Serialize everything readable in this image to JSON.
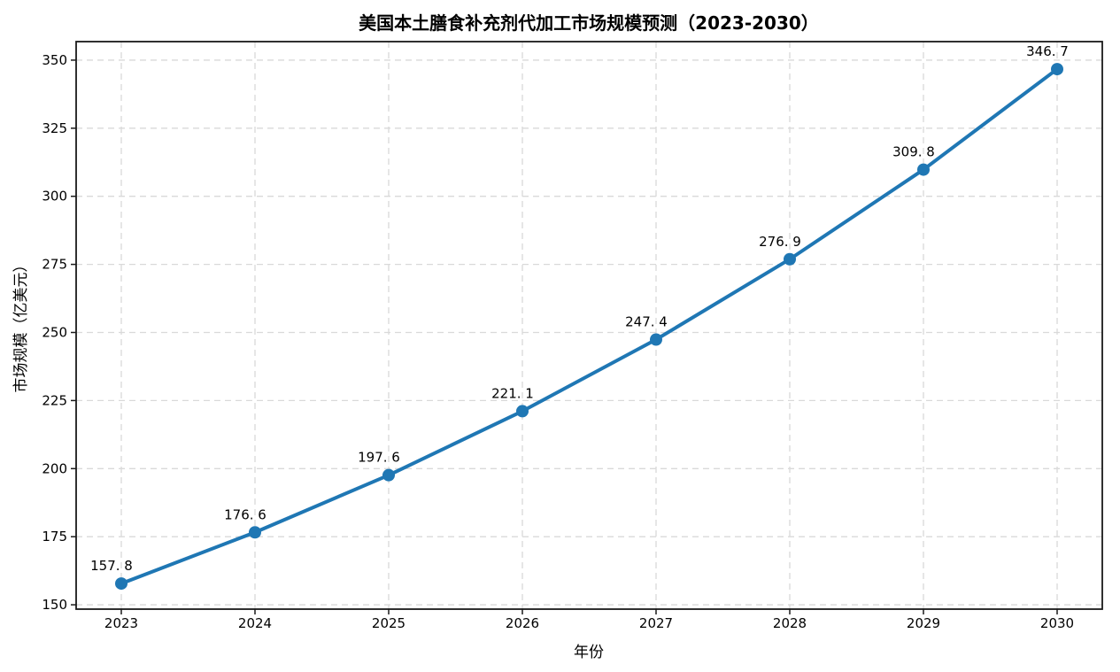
{
  "page": {
    "background": "#ffffff"
  },
  "chart_data": {
    "type": "line",
    "title": "美国本土膳食补充剂代加工市场规模预测（2023-2030）",
    "xlabel": "年份",
    "ylabel": "市场规模（亿美元）",
    "categories": [
      "2023",
      "2024",
      "2025",
      "2026",
      "2027",
      "2028",
      "2029",
      "2030"
    ],
    "series": [
      {
        "name": "市场规模",
        "values": [
          157.8,
          176.6,
          197.6,
          221.1,
          247.4,
          276.9,
          309.8,
          346.7
        ]
      }
    ],
    "point_labels": [
      "157. 8",
      "176. 6",
      "197. 6",
      "221. 1",
      "247. 4",
      "276. 9",
      "309. 8",
      "346. 7"
    ],
    "yticks": [
      150,
      175,
      200,
      225,
      250,
      275,
      300,
      325,
      350
    ],
    "ylim": [
      148.4,
      356.8
    ],
    "grid": "dashed",
    "legend_position": "none",
    "colors": {
      "line": "#1f77b4",
      "marker": "#1f77b4",
      "grid": "#d9d9d9",
      "spine": "#1a1a1a",
      "text": "#000000"
    }
  }
}
